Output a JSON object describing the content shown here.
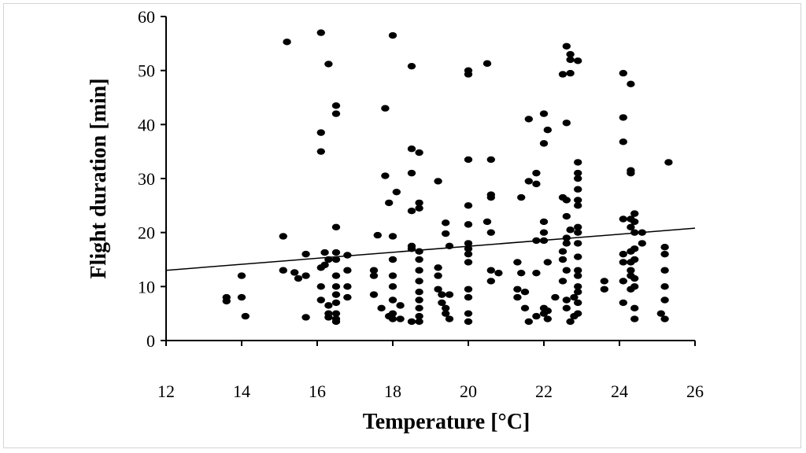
{
  "chart_data": {
    "type": "scatter",
    "title": "",
    "xlabel": "Temperature [°C]",
    "ylabel": "Flight duration [min]",
    "xlim": [
      12,
      26
    ],
    "ylim": [
      0,
      60
    ],
    "xticks": [
      12,
      14,
      16,
      18,
      20,
      22,
      24,
      26
    ],
    "yticks": [
      0,
      10,
      20,
      30,
      40,
      50,
      60
    ],
    "xtick_labels": [
      "12",
      "14",
      "16",
      "18",
      "20",
      "22",
      "24",
      "26"
    ],
    "ytick_labels": [
      "0",
      "10",
      "20",
      "30",
      "40",
      "50",
      "60"
    ],
    "grid": false,
    "legend": "none",
    "colors": {
      "points": "#000000",
      "line": "#000000",
      "axes": "#000000"
    },
    "trendline": {
      "x": [
        12,
        26
      ],
      "y": [
        13.0,
        20.8
      ]
    },
    "points": [
      [
        13.6,
        8.0
      ],
      [
        13.6,
        7.3
      ],
      [
        14.0,
        12.0
      ],
      [
        14.0,
        8.0
      ],
      [
        14.1,
        4.5
      ],
      [
        15.2,
        55.3
      ],
      [
        15.1,
        19.3
      ],
      [
        15.1,
        13.0
      ],
      [
        15.4,
        12.6
      ],
      [
        15.5,
        11.5
      ],
      [
        15.7,
        16.0
      ],
      [
        15.7,
        12.0
      ],
      [
        15.7,
        4.3
      ],
      [
        16.1,
        57.0
      ],
      [
        16.3,
        51.2
      ],
      [
        16.1,
        38.5
      ],
      [
        16.1,
        35.0
      ],
      [
        16.2,
        16.3
      ],
      [
        16.2,
        14.0
      ],
      [
        16.3,
        15.0
      ],
      [
        16.1,
        13.5
      ],
      [
        16.1,
        10.0
      ],
      [
        16.1,
        7.5
      ],
      [
        16.3,
        6.5
      ],
      [
        16.3,
        5.0
      ],
      [
        16.3,
        4.3
      ],
      [
        16.5,
        43.5
      ],
      [
        16.5,
        42.0
      ],
      [
        16.5,
        21.0
      ],
      [
        16.5,
        16.3
      ],
      [
        16.5,
        15.0
      ],
      [
        16.5,
        12.0
      ],
      [
        16.5,
        10.0
      ],
      [
        16.5,
        8.5
      ],
      [
        16.5,
        7.0
      ],
      [
        16.5,
        5.0
      ],
      [
        16.5,
        4.0
      ],
      [
        16.5,
        3.5
      ],
      [
        16.8,
        15.8
      ],
      [
        16.8,
        13.0
      ],
      [
        16.8,
        10.0
      ],
      [
        16.8,
        8.0
      ],
      [
        17.5,
        13.0
      ],
      [
        17.5,
        12.0
      ],
      [
        17.5,
        8.5
      ],
      [
        17.6,
        19.5
      ],
      [
        17.7,
        6.0
      ],
      [
        17.8,
        43.0
      ],
      [
        17.8,
        30.5
      ],
      [
        17.9,
        25.5
      ],
      [
        17.9,
        4.5
      ],
      [
        18.0,
        56.5
      ],
      [
        18.0,
        19.3
      ],
      [
        18.0,
        15.0
      ],
      [
        18.0,
        12.0
      ],
      [
        18.0,
        10.0
      ],
      [
        18.0,
        7.5
      ],
      [
        18.0,
        5.0
      ],
      [
        18.0,
        4.0
      ],
      [
        18.1,
        27.5
      ],
      [
        18.2,
        6.5
      ],
      [
        18.2,
        4.0
      ],
      [
        18.5,
        50.8
      ],
      [
        18.5,
        35.5
      ],
      [
        18.5,
        31.0
      ],
      [
        18.5,
        24.0
      ],
      [
        18.5,
        17.5
      ],
      [
        18.5,
        17.0
      ],
      [
        18.5,
        3.5
      ],
      [
        18.7,
        34.8
      ],
      [
        18.7,
        25.5
      ],
      [
        18.7,
        24.5
      ],
      [
        18.7,
        16.5
      ],
      [
        18.7,
        15.0
      ],
      [
        18.7,
        13.0
      ],
      [
        18.7,
        11.0
      ],
      [
        18.7,
        9.0
      ],
      [
        18.7,
        7.5
      ],
      [
        18.7,
        6.0
      ],
      [
        18.7,
        4.5
      ],
      [
        18.7,
        3.5
      ],
      [
        19.2,
        29.5
      ],
      [
        19.2,
        13.5
      ],
      [
        19.2,
        12.0
      ],
      [
        19.2,
        9.5
      ],
      [
        19.3,
        8.5
      ],
      [
        19.3,
        7.0
      ],
      [
        19.4,
        21.8
      ],
      [
        19.4,
        19.8
      ],
      [
        19.4,
        6.0
      ],
      [
        19.4,
        5.0
      ],
      [
        19.5,
        17.5
      ],
      [
        19.5,
        8.5
      ],
      [
        19.5,
        4.0
      ],
      [
        20.0,
        50.0
      ],
      [
        20.0,
        49.3
      ],
      [
        20.0,
        33.5
      ],
      [
        20.0,
        25.0
      ],
      [
        20.0,
        21.5
      ],
      [
        20.0,
        18.0
      ],
      [
        20.0,
        17.0
      ],
      [
        20.0,
        16.0
      ],
      [
        20.0,
        14.5
      ],
      [
        20.0,
        9.5
      ],
      [
        20.0,
        8.0
      ],
      [
        20.0,
        5.0
      ],
      [
        20.0,
        3.5
      ],
      [
        20.5,
        51.3
      ],
      [
        20.6,
        33.5
      ],
      [
        20.6,
        27.0
      ],
      [
        20.6,
        26.5
      ],
      [
        20.5,
        22.0
      ],
      [
        20.6,
        20.0
      ],
      [
        20.6,
        13.0
      ],
      [
        20.6,
        11.0
      ],
      [
        20.8,
        12.5
      ],
      [
        21.3,
        14.5
      ],
      [
        21.3,
        9.5
      ],
      [
        21.3,
        8.0
      ],
      [
        21.4,
        26.5
      ],
      [
        21.4,
        12.5
      ],
      [
        21.5,
        9.0
      ],
      [
        21.6,
        41.0
      ],
      [
        21.6,
        29.5
      ],
      [
        21.5,
        6.0
      ],
      [
        21.6,
        3.5
      ],
      [
        21.8,
        31.0
      ],
      [
        21.8,
        29.0
      ],
      [
        21.8,
        18.5
      ],
      [
        21.8,
        12.5
      ],
      [
        21.8,
        4.5
      ],
      [
        22.0,
        42.0
      ],
      [
        22.0,
        36.5
      ],
      [
        22.0,
        22.0
      ],
      [
        22.0,
        20.0
      ],
      [
        22.0,
        18.5
      ],
      [
        22.0,
        6.0
      ],
      [
        22.0,
        5.0
      ],
      [
        22.1,
        39.0
      ],
      [
        22.1,
        14.5
      ],
      [
        22.1,
        5.5
      ],
      [
        22.1,
        4.0
      ],
      [
        22.3,
        8.0
      ],
      [
        22.5,
        49.3
      ],
      [
        22.5,
        26.5
      ],
      [
        22.5,
        16.5
      ],
      [
        22.5,
        15.0
      ],
      [
        22.5,
        11.0
      ],
      [
        22.6,
        54.5
      ],
      [
        22.6,
        40.3
      ],
      [
        22.6,
        26.0
      ],
      [
        22.6,
        23.0
      ],
      [
        22.6,
        19.0
      ],
      [
        22.6,
        18.0
      ],
      [
        22.6,
        13.0
      ],
      [
        22.6,
        7.5
      ],
      [
        22.6,
        6.0
      ],
      [
        22.7,
        53.0
      ],
      [
        22.7,
        52.0
      ],
      [
        22.7,
        49.5
      ],
      [
        22.7,
        20.5
      ],
      [
        22.7,
        3.5
      ],
      [
        22.8,
        8.0
      ],
      [
        22.8,
        4.5
      ],
      [
        22.9,
        51.8
      ],
      [
        22.9,
        33.0
      ],
      [
        22.9,
        31.0
      ],
      [
        22.9,
        30.0
      ],
      [
        22.9,
        28.0
      ],
      [
        22.9,
        26.0
      ],
      [
        22.9,
        25.0
      ],
      [
        22.9,
        21.0
      ],
      [
        22.9,
        20.0
      ],
      [
        22.9,
        18.0
      ],
      [
        22.9,
        15.5
      ],
      [
        22.9,
        13.0
      ],
      [
        22.9,
        12.0
      ],
      [
        22.9,
        10.0
      ],
      [
        22.9,
        9.0
      ],
      [
        22.9,
        7.0
      ],
      [
        22.9,
        5.0
      ],
      [
        23.6,
        11.0
      ],
      [
        23.6,
        9.5
      ],
      [
        24.1,
        49.5
      ],
      [
        24.1,
        41.3
      ],
      [
        24.1,
        36.8
      ],
      [
        24.1,
        22.5
      ],
      [
        24.1,
        16.0
      ],
      [
        24.1,
        14.5
      ],
      [
        24.1,
        11.0
      ],
      [
        24.1,
        7.0
      ],
      [
        24.3,
        47.5
      ],
      [
        24.3,
        31.5
      ],
      [
        24.3,
        31.0
      ],
      [
        24.3,
        22.5
      ],
      [
        24.3,
        21.0
      ],
      [
        24.3,
        16.5
      ],
      [
        24.3,
        14.5
      ],
      [
        24.3,
        13.0
      ],
      [
        24.3,
        12.0
      ],
      [
        24.3,
        9.5
      ],
      [
        24.4,
        23.5
      ],
      [
        24.4,
        22.0
      ],
      [
        24.4,
        20.0
      ],
      [
        24.4,
        17.0
      ],
      [
        24.4,
        15.0
      ],
      [
        24.4,
        11.5
      ],
      [
        24.4,
        10.0
      ],
      [
        24.4,
        6.0
      ],
      [
        24.4,
        4.0
      ],
      [
        24.6,
        20.0
      ],
      [
        24.6,
        18.0
      ],
      [
        25.1,
        5.0
      ],
      [
        25.2,
        17.3
      ],
      [
        25.2,
        16.0
      ],
      [
        25.2,
        13.0
      ],
      [
        25.2,
        10.0
      ],
      [
        25.2,
        7.5
      ],
      [
        25.2,
        4.0
      ],
      [
        25.3,
        33.0
      ]
    ]
  }
}
